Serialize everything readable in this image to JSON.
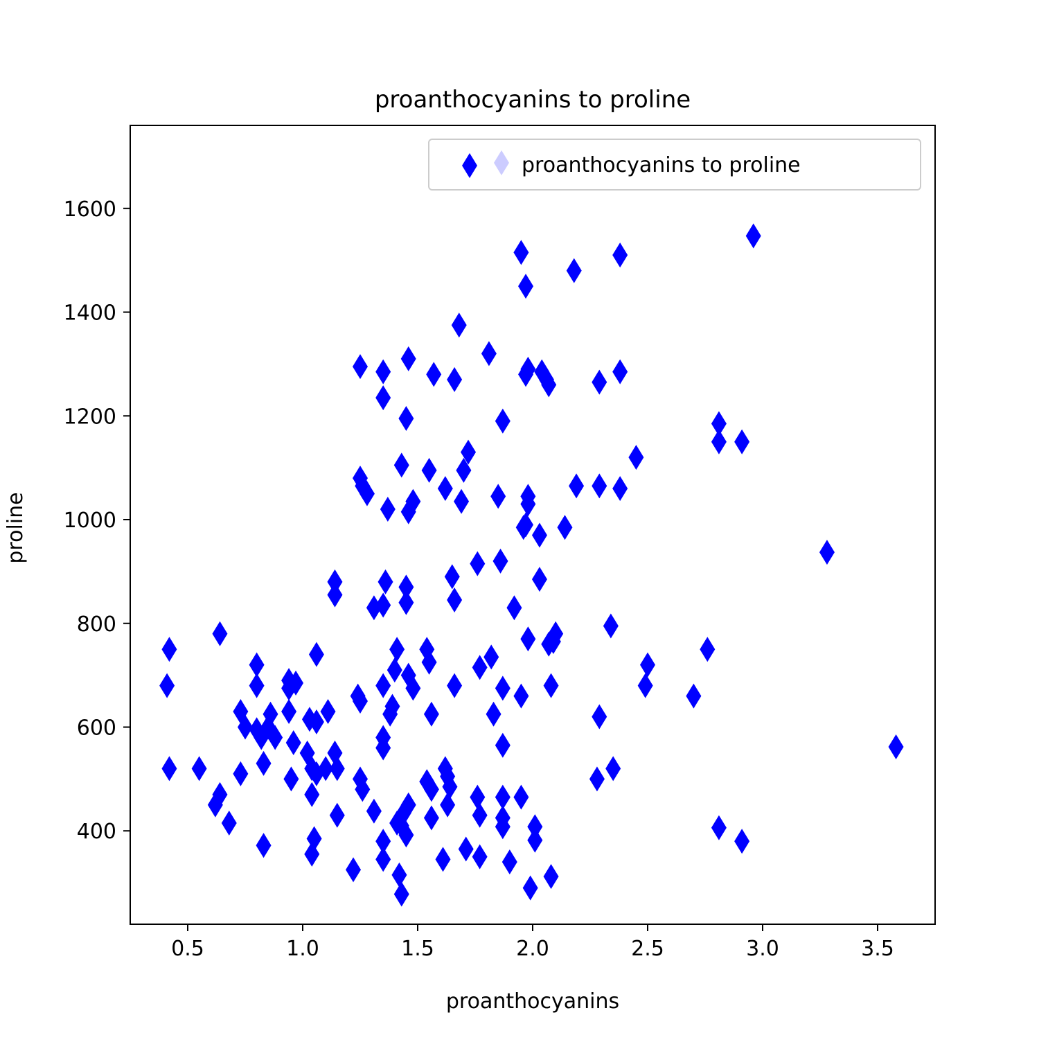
{
  "chart_data": {
    "type": "scatter",
    "title": "proanthocyanins to proline",
    "xlabel": "proanthocyanins",
    "ylabel": "proline",
    "xlim": [
      0.25,
      3.75
    ],
    "ylim": [
      220,
      1760
    ],
    "xticks": [
      0.5,
      1.0,
      1.5,
      2.0,
      2.5,
      3.0,
      3.5
    ],
    "xtick_labels": [
      "0.5",
      "1.0",
      "1.5",
      "2.0",
      "2.5",
      "3.0",
      "3.5"
    ],
    "yticks": [
      400,
      600,
      800,
      1000,
      1200,
      1400,
      1600
    ],
    "ytick_labels": [
      "400",
      "600",
      "800",
      "1000",
      "1200",
      "1400",
      "1600"
    ],
    "grid": false,
    "legend": {
      "position": "top-right"
    },
    "marker": "thin-diamond",
    "color": "#0000ff",
    "series": [
      {
        "name": "proanthocyanins to proline",
        "points": [
          [
            0.42,
            750
          ],
          [
            0.41,
            680
          ],
          [
            0.42,
            520
          ],
          [
            0.55,
            520
          ],
          [
            0.64,
            780
          ],
          [
            0.62,
            450
          ],
          [
            0.64,
            470
          ],
          [
            0.68,
            415
          ],
          [
            0.73,
            510
          ],
          [
            0.73,
            630
          ],
          [
            0.75,
            600
          ],
          [
            0.8,
            720
          ],
          [
            0.8,
            680
          ],
          [
            0.8,
            595
          ],
          [
            0.82,
            580
          ],
          [
            0.83,
            530
          ],
          [
            0.83,
            372
          ],
          [
            0.85,
            600
          ],
          [
            0.86,
            625
          ],
          [
            0.88,
            580
          ],
          [
            0.94,
            690
          ],
          [
            0.94,
            675
          ],
          [
            0.94,
            630
          ],
          [
            0.95,
            500
          ],
          [
            0.96,
            570
          ],
          [
            0.97,
            685
          ],
          [
            1.02,
            550
          ],
          [
            1.03,
            615
          ],
          [
            1.04,
            470
          ],
          [
            1.04,
            520
          ],
          [
            1.05,
            385
          ],
          [
            1.04,
            355
          ],
          [
            1.06,
            610
          ],
          [
            1.06,
            740
          ],
          [
            1.06,
            510
          ],
          [
            1.1,
            520
          ],
          [
            1.11,
            630
          ],
          [
            1.14,
            880
          ],
          [
            1.14,
            855
          ],
          [
            1.14,
            550
          ],
          [
            1.15,
            520
          ],
          [
            1.15,
            430
          ],
          [
            1.22,
            325
          ],
          [
            1.24,
            660
          ],
          [
            1.25,
            650
          ],
          [
            1.25,
            500
          ],
          [
            1.26,
            480
          ],
          [
            1.25,
            1295
          ],
          [
            1.25,
            1080
          ],
          [
            1.26,
            1065
          ],
          [
            1.28,
            1050
          ],
          [
            1.31,
            438
          ],
          [
            1.31,
            830
          ],
          [
            1.35,
            1285
          ],
          [
            1.35,
            1235
          ],
          [
            1.36,
            880
          ],
          [
            1.35,
            835
          ],
          [
            1.35,
            680
          ],
          [
            1.35,
            580
          ],
          [
            1.35,
            560
          ],
          [
            1.35,
            380
          ],
          [
            1.35,
            345
          ],
          [
            1.37,
            1020
          ],
          [
            1.38,
            625
          ],
          [
            1.39,
            640
          ],
          [
            1.4,
            710
          ],
          [
            1.41,
            750
          ],
          [
            1.41,
            415
          ],
          [
            1.42,
            315
          ],
          [
            1.43,
            278
          ],
          [
            1.43,
            410
          ],
          [
            1.44,
            435
          ],
          [
            1.43,
            1105
          ],
          [
            1.45,
            1195
          ],
          [
            1.45,
            870
          ],
          [
            1.45,
            840
          ],
          [
            1.46,
            1310
          ],
          [
            1.46,
            1015
          ],
          [
            1.46,
            700
          ],
          [
            1.46,
            450
          ],
          [
            1.45,
            392
          ],
          [
            1.48,
            1035
          ],
          [
            1.48,
            675
          ],
          [
            1.54,
            495
          ],
          [
            1.54,
            750
          ],
          [
            1.55,
            725
          ],
          [
            1.55,
            1095
          ],
          [
            1.56,
            480
          ],
          [
            1.56,
            625
          ],
          [
            1.56,
            425
          ],
          [
            1.57,
            1280
          ],
          [
            1.61,
            345
          ],
          [
            1.62,
            1060
          ],
          [
            1.62,
            520
          ],
          [
            1.63,
            450
          ],
          [
            1.63,
            505
          ],
          [
            1.64,
            485
          ],
          [
            1.65,
            890
          ],
          [
            1.66,
            1270
          ],
          [
            1.66,
            845
          ],
          [
            1.66,
            680
          ],
          [
            1.68,
            1375
          ],
          [
            1.69,
            1035
          ],
          [
            1.7,
            1095
          ],
          [
            1.71,
            365
          ],
          [
            1.72,
            1130
          ],
          [
            1.76,
            915
          ],
          [
            1.76,
            465
          ],
          [
            1.77,
            430
          ],
          [
            1.77,
            350
          ],
          [
            1.77,
            715
          ],
          [
            1.81,
            1320
          ],
          [
            1.82,
            735
          ],
          [
            1.83,
            625
          ],
          [
            1.85,
            1045
          ],
          [
            1.86,
            920
          ],
          [
            1.87,
            1190
          ],
          [
            1.87,
            675
          ],
          [
            1.87,
            565
          ],
          [
            1.87,
            465
          ],
          [
            1.87,
            425
          ],
          [
            1.87,
            408
          ],
          [
            1.9,
            340
          ],
          [
            1.92,
            830
          ],
          [
            1.95,
            1515
          ],
          [
            1.95,
            660
          ],
          [
            1.95,
            465
          ],
          [
            1.96,
            985
          ],
          [
            1.97,
            1450
          ],
          [
            1.97,
            1280
          ],
          [
            1.97,
            990
          ],
          [
            1.98,
            1290
          ],
          [
            1.98,
            1045
          ],
          [
            1.98,
            1030
          ],
          [
            1.98,
            770
          ],
          [
            1.99,
            290
          ],
          [
            2.01,
            408
          ],
          [
            2.01,
            382
          ],
          [
            2.03,
            970
          ],
          [
            2.03,
            885
          ],
          [
            2.04,
            1285
          ],
          [
            2.06,
            1270
          ],
          [
            2.07,
            1260
          ],
          [
            2.07,
            760
          ],
          [
            2.08,
            680
          ],
          [
            2.08,
            312
          ],
          [
            2.09,
            765
          ],
          [
            2.1,
            780
          ],
          [
            2.14,
            985
          ],
          [
            2.18,
            1480
          ],
          [
            2.19,
            1065
          ],
          [
            2.28,
            500
          ],
          [
            2.29,
            1265
          ],
          [
            2.29,
            1065
          ],
          [
            2.29,
            620
          ],
          [
            2.34,
            795
          ],
          [
            2.35,
            520
          ],
          [
            2.38,
            1510
          ],
          [
            2.38,
            1285
          ],
          [
            2.38,
            1060
          ],
          [
            2.45,
            1120
          ],
          [
            2.49,
            680
          ],
          [
            2.5,
            720
          ],
          [
            2.7,
            660
          ],
          [
            2.76,
            750
          ],
          [
            2.81,
            1185
          ],
          [
            2.81,
            1150
          ],
          [
            2.81,
            406
          ],
          [
            2.91,
            1150
          ],
          [
            2.91,
            380
          ],
          [
            2.96,
            1547
          ],
          [
            3.28,
            937
          ],
          [
            3.58,
            562
          ]
        ]
      }
    ]
  }
}
